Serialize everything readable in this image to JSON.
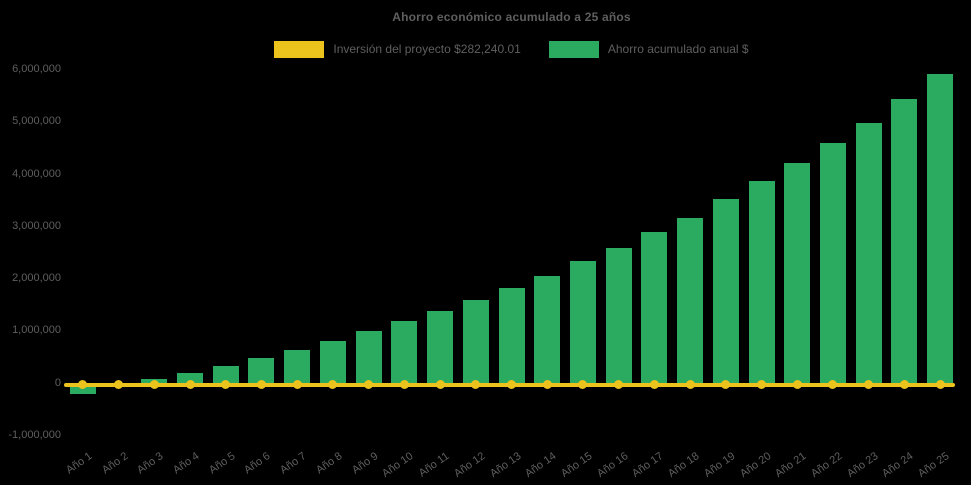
{
  "title": "Ahorro económico acumulado a 25 años",
  "colors": {
    "background": "#000000",
    "text": "#5f5f5f",
    "investment_line": "#ecc31d",
    "savings_bar": "#2bab60"
  },
  "legend": [
    {
      "label": "Inversión del proyecto $282,240.01",
      "color": "#ecc31d"
    },
    {
      "label": "Ahorro acumulado anual $",
      "color": "#2bab60"
    }
  ],
  "chart_data": {
    "type": "bar",
    "title": "Ahorro económico acumulado a 25 años",
    "categories": [
      "Año 1",
      "Año 2",
      "Año 3",
      "Año 4",
      "Año 5",
      "Año 6",
      "Año 7",
      "Año 8",
      "Año 9",
      "Año 10",
      "Año 11",
      "Año 12",
      "Año 13",
      "Año 14",
      "Año 15",
      "Año 16",
      "Año 17",
      "Año 18",
      "Año 19",
      "Año 20",
      "Año 21",
      "Año 22",
      "Año 23",
      "Año 24",
      "Año 25"
    ],
    "series": [
      {
        "name": "Inversión del proyecto $282,240.01",
        "type": "line",
        "color": "#ecc31d",
        "marker": "circle",
        "investment_amount_label": "$282,240.01",
        "constant_value_estimate": -40000
      },
      {
        "name": "Ahorro acumulado anual $",
        "type": "bar",
        "color": "#2bab60",
        "values": [
          -210000,
          -75000,
          70000,
          195000,
          320000,
          475000,
          625000,
          800000,
          980000,
          1180000,
          1370000,
          1580000,
          1820000,
          2050000,
          2330000,
          2570000,
          2880000,
          3150000,
          3510000,
          3860000,
          4210000,
          4580000,
          4970000,
          5420000,
          5900000
        ]
      }
    ],
    "ylim": [
      -1000000,
      6000000
    ],
    "ytick_step": 1000000,
    "ytick_labels": [
      "6,000,000",
      "5,000,000",
      "4,000,000",
      "3,000,000",
      "2,000,000",
      "1,000,000",
      "0",
      "-1,000,000"
    ],
    "xlabel_rotation_deg": -35,
    "grid": false,
    "legend_position": "top-center",
    "background": "#000000"
  }
}
